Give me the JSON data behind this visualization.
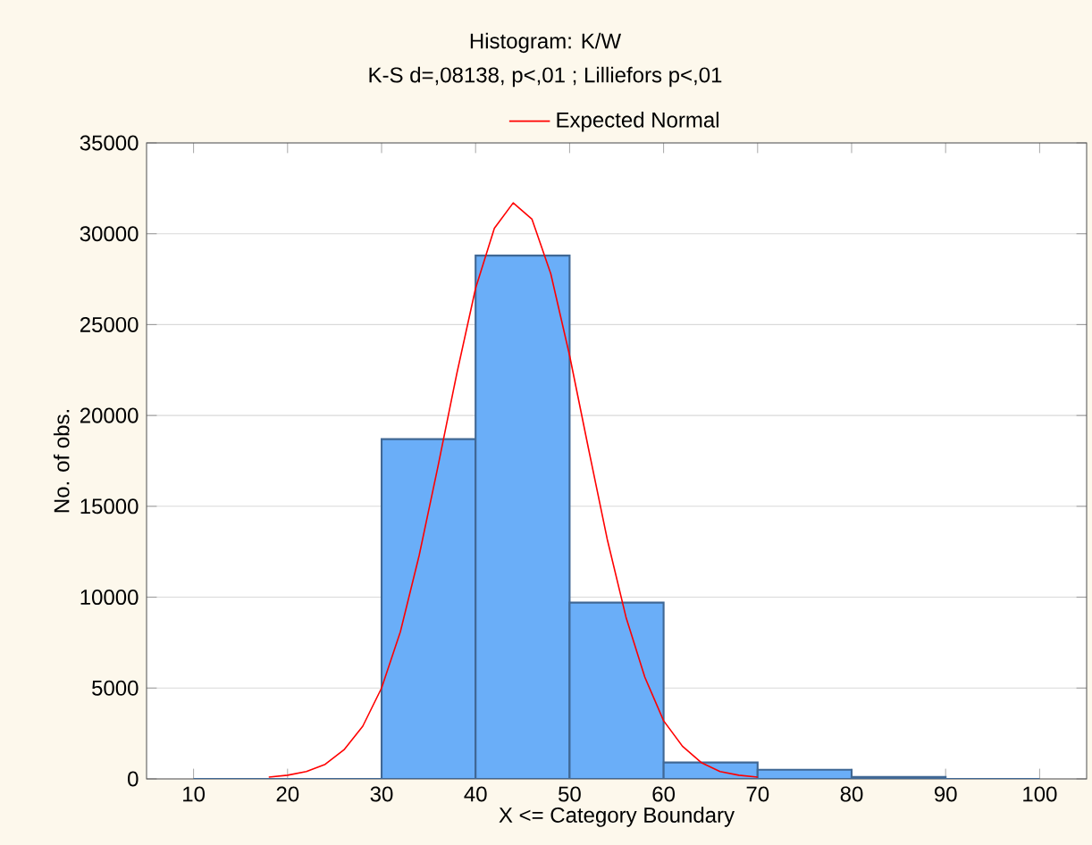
{
  "chart_data": {
    "type": "histogram",
    "title": "Histogram: K/W",
    "subtitle": "K-S d=,08138, p<,01 ; Lilliefors p<,01",
    "xlabel": "X <= Category Boundary",
    "ylabel": "No. of obs.",
    "bins": [
      10,
      20,
      30,
      40,
      50,
      60,
      70,
      80,
      90,
      100
    ],
    "values": [
      0,
      0,
      18700,
      28800,
      9700,
      900,
      500,
      100,
      0
    ],
    "color": "#6aaef8",
    "series": [
      {
        "name": "Expected Normal",
        "type": "line",
        "color": "#ff0000",
        "x": [
          18,
          20,
          22,
          24,
          26,
          28,
          30,
          32,
          34,
          36,
          38,
          40,
          42,
          44,
          46,
          48,
          50,
          52,
          54,
          56,
          58,
          60,
          62,
          64,
          66,
          68,
          70
        ],
        "values": [
          100,
          200,
          400,
          800,
          1600,
          2900,
          5000,
          8100,
          12300,
          17200,
          22300,
          27000,
          30300,
          31700,
          30800,
          27800,
          23300,
          18200,
          13200,
          8900,
          5600,
          3200,
          1800,
          900,
          400,
          200,
          100
        ]
      }
    ],
    "xlim": [
      5,
      105
    ],
    "ylim": [
      0,
      35000
    ],
    "xticks": [
      10,
      20,
      30,
      40,
      50,
      60,
      70,
      80,
      90,
      100
    ],
    "yticks": [
      0,
      5000,
      10000,
      15000,
      20000,
      25000,
      30000,
      35000
    ],
    "grid": "y",
    "legend": "top"
  }
}
